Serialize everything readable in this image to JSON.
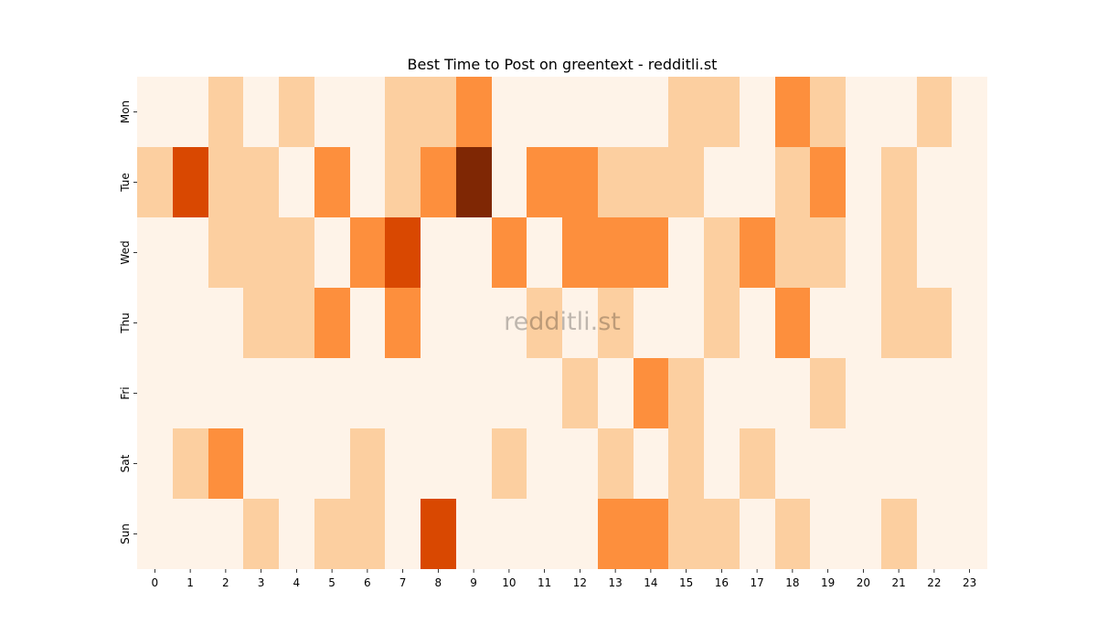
{
  "chart_data": {
    "type": "heatmap",
    "title": "Best Time to Post on greentext - redditli.st",
    "xlabel": "",
    "ylabel": "",
    "x_categories": [
      "0",
      "1",
      "2",
      "3",
      "4",
      "5",
      "6",
      "7",
      "8",
      "9",
      "10",
      "11",
      "12",
      "13",
      "14",
      "15",
      "16",
      "17",
      "18",
      "19",
      "20",
      "21",
      "22",
      "23"
    ],
    "y_categories": [
      "Mon",
      "Tue",
      "Wed",
      "Thu",
      "Fri",
      "Sat",
      "Sun"
    ],
    "values": [
      [
        0,
        0,
        1,
        0,
        1,
        0,
        0,
        1,
        1,
        2,
        0,
        0,
        0,
        0,
        0,
        1,
        1,
        0,
        2,
        1,
        0,
        0,
        1,
        0
      ],
      [
        1,
        3,
        1,
        1,
        0,
        2,
        0,
        1,
        2,
        4,
        0,
        2,
        2,
        1,
        1,
        1,
        0,
        0,
        1,
        2,
        0,
        1,
        0,
        0
      ],
      [
        0,
        0,
        1,
        1,
        1,
        0,
        2,
        3,
        0,
        0,
        2,
        0,
        2,
        2,
        2,
        0,
        1,
        2,
        1,
        1,
        0,
        1,
        0,
        0
      ],
      [
        0,
        0,
        0,
        1,
        1,
        2,
        0,
        2,
        0,
        0,
        0,
        1,
        0,
        1,
        0,
        0,
        1,
        0,
        2,
        0,
        0,
        1,
        1,
        0
      ],
      [
        0,
        0,
        0,
        0,
        0,
        0,
        0,
        0,
        0,
        0,
        0,
        0,
        1,
        0,
        2,
        1,
        0,
        0,
        0,
        1,
        0,
        0,
        0,
        0
      ],
      [
        0,
        1,
        2,
        0,
        0,
        0,
        1,
        0,
        0,
        0,
        1,
        0,
        0,
        1,
        0,
        1,
        0,
        1,
        0,
        0,
        0,
        0,
        0,
        0
      ],
      [
        0,
        0,
        0,
        1,
        0,
        1,
        1,
        0,
        3,
        0,
        0,
        0,
        0,
        2,
        2,
        1,
        1,
        0,
        1,
        0,
        0,
        1,
        0,
        0
      ]
    ],
    "value_range": [
      0,
      4
    ],
    "colormap": "Oranges",
    "level_colors": [
      "#fef3e8",
      "#fccfa0",
      "#fd8f3d",
      "#d94801",
      "#7f2704"
    ],
    "colorbar": false,
    "grid": false,
    "watermark": "redditli.st"
  }
}
